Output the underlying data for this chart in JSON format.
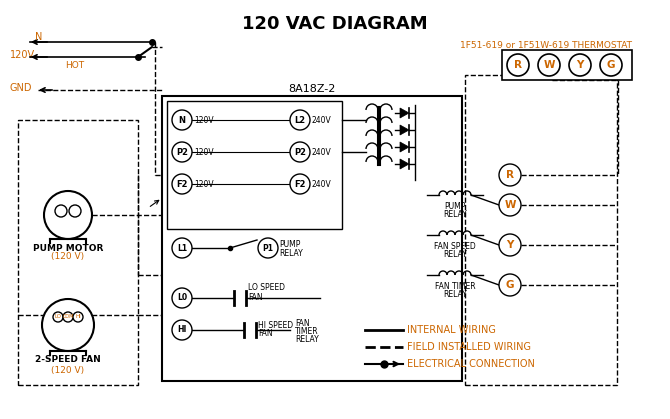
{
  "title": "120 VAC DIAGRAM",
  "orange_color": "#cc6600",
  "black_color": "#000000",
  "bg_color": "#ffffff",
  "thermostat_label": "1F51-619 or 1F51W-619 THERMOSTAT",
  "box_label": "8A18Z-2",
  "legend_internal": "INTERNAL WIRING",
  "legend_field": "FIELD INSTALLED WIRING",
  "legend_electrical": "ELECTRICAL CONNECTION"
}
